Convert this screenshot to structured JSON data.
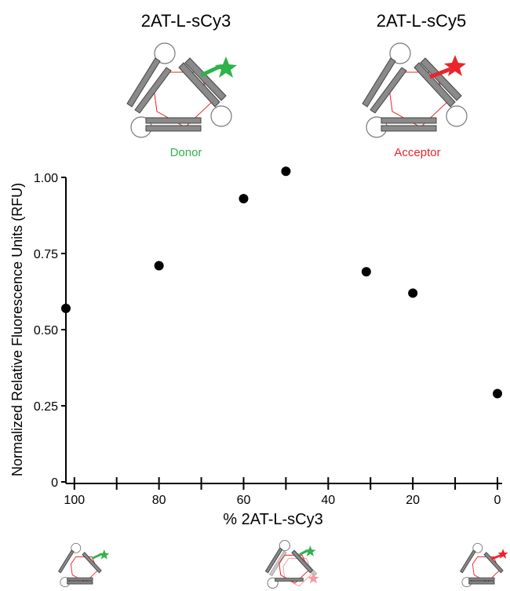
{
  "header": {
    "donor_title": "2AT-L-sCy3",
    "acceptor_title": "2AT-L-sCy5",
    "donor_label": "Donor",
    "acceptor_label": "Acceptor"
  },
  "colors": {
    "donor": "#2fb24a",
    "acceptor": "#e8262c",
    "strand_fill": "#8a8a8a",
    "triangle_line": "#e8262c"
  },
  "icons": {
    "donor_structure": "triangle-trimer-green-star-icon",
    "acceptor_structure": "triangle-trimer-red-star-icon",
    "mixed_structure": "overlapping-trimers-icon"
  },
  "chart_data": {
    "type": "scatter",
    "xlabel": "% 2AT-L-sCy3",
    "ylabel": "Normalized Relative Fluorescence Units (RFU)",
    "xlim": [
      102,
      0
    ],
    "ylim": [
      0,
      1.0
    ],
    "x_ticks": [
      100,
      80,
      60,
      40,
      20,
      0
    ],
    "x_minor_ticks": [
      90,
      70,
      50,
      30,
      10
    ],
    "y_ticks": [
      0,
      0.25,
      0.5,
      0.75,
      1.0
    ],
    "x_tick_labels": [
      "100",
      "80",
      "60",
      "40",
      "20",
      "0"
    ],
    "y_tick_labels": [
      "0",
      "0.25",
      "0.50",
      "0.75",
      "1.00"
    ],
    "points": [
      {
        "x": 102,
        "y": 0.57
      },
      {
        "x": 80,
        "y": 0.71
      },
      {
        "x": 60,
        "y": 0.93
      },
      {
        "x": 50,
        "y": 1.02
      },
      {
        "x": 31,
        "y": 0.69
      },
      {
        "x": 20,
        "y": 0.62
      },
      {
        "x": 0,
        "y": 0.29
      }
    ]
  }
}
